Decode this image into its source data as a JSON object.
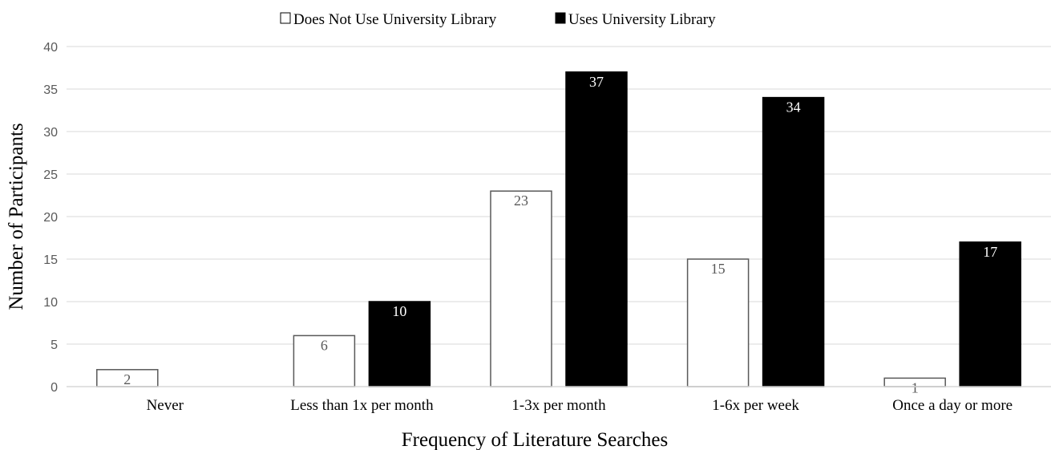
{
  "chart_data": {
    "type": "bar",
    "xlabel": "Frequency of Literature Searches",
    "ylabel": "Number of Participants",
    "ylim": [
      0,
      40
    ],
    "yticks": [
      0,
      5,
      10,
      15,
      20,
      25,
      30,
      35,
      40
    ],
    "grid": true,
    "legend_position": "top",
    "categories": [
      "Never",
      "Less than 1x per month",
      "1-3x per month",
      "1-6x per week",
      "Once a day or more"
    ],
    "series": [
      {
        "name": "Does Not Use University Library",
        "color": "#ffffff",
        "values": [
          2,
          6,
          23,
          15,
          1
        ],
        "labels": [
          "2",
          "6",
          "23",
          "15",
          "1"
        ]
      },
      {
        "name": "Uses University Library",
        "color": "#000000",
        "values": [
          0,
          10,
          37,
          34,
          17
        ],
        "labels": [
          "",
          "10",
          "37",
          "34",
          "17"
        ]
      }
    ]
  }
}
